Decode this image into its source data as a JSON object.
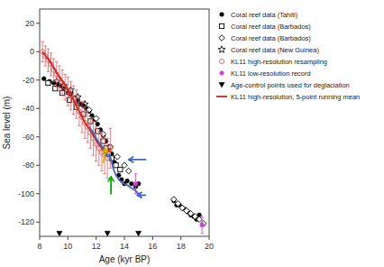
{
  "chart_data": {
    "type": "scatter",
    "xlabel": "Age (kyr BP)",
    "ylabel": "Sea level (m)",
    "xlim": [
      8,
      20
    ],
    "ylim": [
      -130,
      30
    ],
    "xticks": [
      8,
      10,
      12,
      14,
      16,
      18,
      20
    ],
    "yticks": [
      20,
      0,
      -20,
      -40,
      -60,
      -80,
      -100,
      -120
    ],
    "grid": false,
    "legend": "right",
    "series": [
      {
        "name": "Coral reef data (Tahiti)",
        "type": "scatter",
        "marker": "circle",
        "color": "#000000",
        "x": [
          8.3,
          8.7,
          9.0,
          9.3,
          9.5,
          9.7,
          10.0,
          10.2,
          10.5,
          10.7,
          10.9,
          11.1,
          11.3,
          11.5,
          11.7,
          11.9,
          12.1,
          12.3,
          12.5,
          12.7,
          12.9,
          13.1,
          13.3,
          13.6,
          13.8,
          14.0,
          14.2,
          14.5,
          14.8,
          15.0,
          17.5,
          17.7,
          17.9,
          18.1,
          18.3,
          18.5,
          18.7,
          18.9,
          19.1,
          19.3
        ],
        "values": [
          -19,
          -21,
          -22,
          -23,
          -24,
          -26,
          -29,
          -30,
          -33,
          -35,
          -37,
          -38,
          -40,
          -42,
          -45,
          -48,
          -51,
          -55,
          -59,
          -63,
          -67,
          -72,
          -78,
          -87,
          -90,
          -93,
          -91,
          -93,
          -95,
          -93,
          -105,
          -108,
          -108,
          -110,
          -111,
          -113,
          -115,
          -116,
          -118,
          -115
        ]
      },
      {
        "name": "Coral reef data (Barbados)",
        "type": "scatter",
        "marker": "open-square",
        "color": "#000000",
        "x": [
          8.6,
          9.1,
          9.6,
          10.1,
          10.6,
          11.1,
          11.6,
          12.1,
          12.5,
          12.7,
          12.9,
          13.1,
          13.4,
          13.7
        ],
        "values": [
          -22,
          -26,
          -29,
          -34,
          -39,
          -44,
          -49,
          -56,
          -63,
          -68,
          -72,
          -75,
          -80,
          -83
        ]
      },
      {
        "name": "Coral reef data (Barbados)",
        "type": "scatter",
        "marker": "open-diamond",
        "color": "#000000",
        "x": [
          10.5,
          11.5,
          12.0,
          12.5,
          13.0,
          13.5,
          14.0,
          14.3,
          17.5,
          17.8,
          18.1,
          18.4,
          18.7,
          19.0,
          19.3,
          19.6
        ],
        "values": [
          -33,
          -41,
          -47,
          -58,
          -67,
          -74,
          -80,
          -84,
          -104,
          -107,
          -110,
          -112,
          -114,
          -116,
          -118,
          -121
        ]
      },
      {
        "name": "Coral reef data (New Guinea)",
        "type": "scatter",
        "marker": "open-star",
        "color": "#000000",
        "x": [
          9.2,
          9.7,
          10.2,
          10.7,
          11.2
        ],
        "values": [
          -21,
          -24,
          -27,
          -32,
          -37
        ]
      },
      {
        "name": "KL11 high-resolution resampling",
        "type": "scatter",
        "marker": "open-circle",
        "color": "#e06060",
        "x": [
          8.2,
          8.4,
          8.6,
          8.8,
          9.0,
          9.2,
          9.4,
          9.6,
          9.8,
          10.0,
          10.2,
          10.4,
          10.6,
          10.8,
          11.0,
          11.2,
          11.4,
          11.6,
          11.8,
          12.0,
          12.2,
          12.4,
          12.6,
          12.8,
          13.0
        ],
        "values": [
          0,
          -3,
          -6,
          -9,
          -13,
          -16,
          -19,
          -22,
          -25,
          -28,
          -31,
          -34,
          -37,
          -42,
          -46,
          -50,
          -53,
          -57,
          -61,
          -65,
          -68,
          -71,
          -73,
          -75,
          -68
        ],
        "errors": [
          7,
          7,
          8,
          8,
          8,
          9,
          9,
          9,
          9,
          10,
          10,
          10,
          10,
          10,
          11,
          11,
          11,
          11,
          12,
          12,
          12,
          13,
          13,
          14,
          14
        ]
      },
      {
        "name": "KL11 low-resolution record",
        "type": "scatter",
        "marker": "circle",
        "color": "#cc44cc",
        "x": [
          14.8,
          19.5
        ],
        "values": [
          -93,
          -122
        ],
        "errors": [
          7,
          6
        ]
      },
      {
        "name": "Age-control points used for deglaciation",
        "type": "scatter",
        "marker": "triangle-down",
        "color": "#000000",
        "x": [
          9.4,
          12.8,
          15.0
        ],
        "values": [
          -128,
          -128,
          -128
        ]
      },
      {
        "name": "KL11 high-resolution, 5-point running mean",
        "type": "line",
        "line_style": "solid",
        "color": "#cc2222",
        "x": [
          8.2,
          8.5,
          8.8,
          9.1,
          9.4,
          9.7,
          10.0,
          10.3,
          10.6,
          10.9,
          11.2,
          11.5,
          11.8,
          12.1,
          12.4,
          12.7,
          13.0
        ],
        "values": [
          0,
          -4,
          -8,
          -13,
          -18,
          -22,
          -27,
          -32,
          -38,
          -44,
          -50,
          -54,
          -59,
          -64,
          -68,
          -73,
          -68
        ]
      },
      {
        "type": "line",
        "line_style": "solid",
        "color": "#4466bb",
        "x": [
          11.5,
          11.8,
          12.0,
          12.2,
          12.5,
          12.7,
          12.85,
          12.95,
          13.05,
          13.2,
          13.4,
          13.6,
          13.8,
          14.0,
          14.2,
          14.5,
          14.8,
          15.2
        ],
        "values": [
          -53,
          -57,
          -61,
          -64,
          -68,
          -72,
          -74,
          -72,
          -76,
          -82,
          -87,
          -90,
          -92,
          -93,
          -94,
          -96,
          -98,
          -102
        ]
      }
    ],
    "annotations": [
      {
        "x1": 12.5,
        "y1": -78,
        "x2": 12.7,
        "y2": -68,
        "color": "#ccbb00"
      },
      {
        "x1": 13.05,
        "y1": -100,
        "x2": 13.05,
        "y2": -88,
        "color": "#00aa00"
      },
      {
        "x1": 15.5,
        "y1": -76,
        "x2": 14.3,
        "y2": -76,
        "color": "#4466bb"
      },
      {
        "x1": 15.5,
        "y1": -101,
        "x2": 14.9,
        "y2": -101,
        "color": "#4466bb"
      }
    ]
  }
}
